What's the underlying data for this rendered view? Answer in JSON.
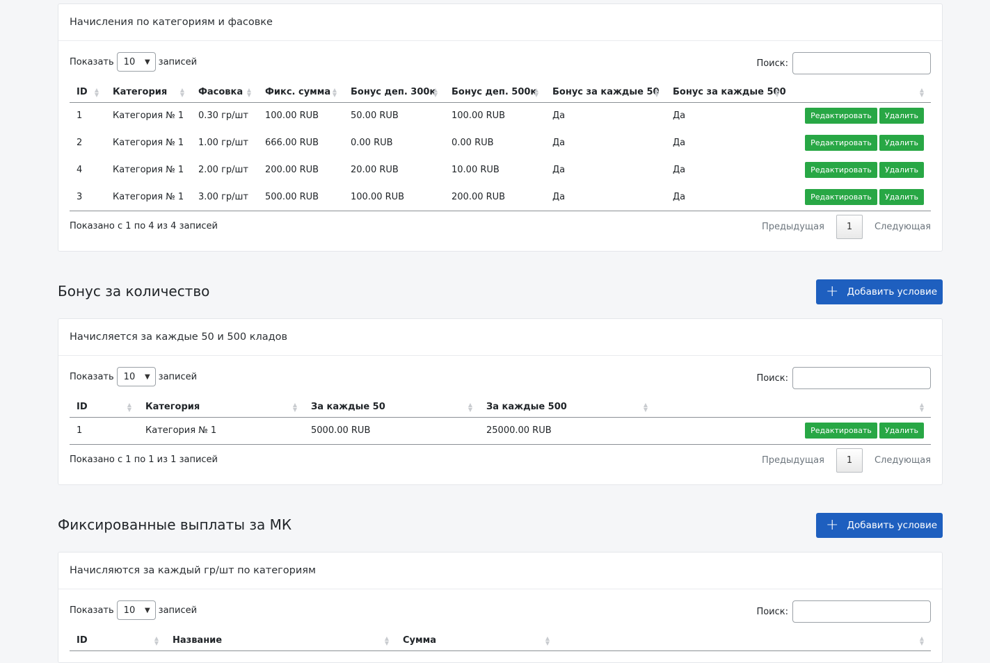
{
  "common": {
    "show": "Показать",
    "entries": "записей",
    "length_value": "10",
    "search_label": "Поиск:",
    "prev": "Предыдущая",
    "next": "Следующая",
    "page": "1",
    "edit": "Редактировать",
    "delete": "Удалить",
    "add_condition": "Добавить условие"
  },
  "card1": {
    "title": "Начисления по категориям и фасовке",
    "columns": [
      "ID",
      "Категория",
      "Фасовка",
      "Фикс. сумма",
      "Бонус деп. 300к",
      "Бонус деп. 500к",
      "Бонус за каждые 50",
      "Бонус за каждые 500"
    ],
    "rows": [
      [
        "1",
        "Категория № 1",
        "0.30 гр/шт",
        "100.00 RUB",
        "50.00 RUB",
        "100.00 RUB",
        "Да",
        "Да"
      ],
      [
        "2",
        "Категория № 1",
        "1.00 гр/шт",
        "666.00 RUB",
        "0.00 RUB",
        "0.00 RUB",
        "Да",
        "Да"
      ],
      [
        "4",
        "Категория № 1",
        "2.00 гр/шт",
        "200.00 RUB",
        "20.00 RUB",
        "10.00 RUB",
        "Да",
        "Да"
      ],
      [
        "3",
        "Категория № 1",
        "3.00 гр/шт",
        "500.00 RUB",
        "100.00 RUB",
        "200.00 RUB",
        "Да",
        "Да"
      ]
    ],
    "info": "Показано с 1 по 4 из 4 записей"
  },
  "section2": {
    "title": "Бонус за количество"
  },
  "card2": {
    "title": "Начисляется за каждые 50 и 500 кладов",
    "columns": [
      "ID",
      "Категория",
      "За каждые 50",
      "За каждые 500"
    ],
    "rows": [
      [
        "1",
        "Категория № 1",
        "5000.00 RUB",
        "25000.00 RUB"
      ]
    ],
    "info": "Показано с 1 по 1 из 1 записей"
  },
  "section3": {
    "title": "Фиксированные выплаты за МК"
  },
  "card3": {
    "title": "Начисляются за каждый гр/шт по категориям",
    "columns": [
      "ID",
      "Название",
      "Сумма"
    ]
  }
}
